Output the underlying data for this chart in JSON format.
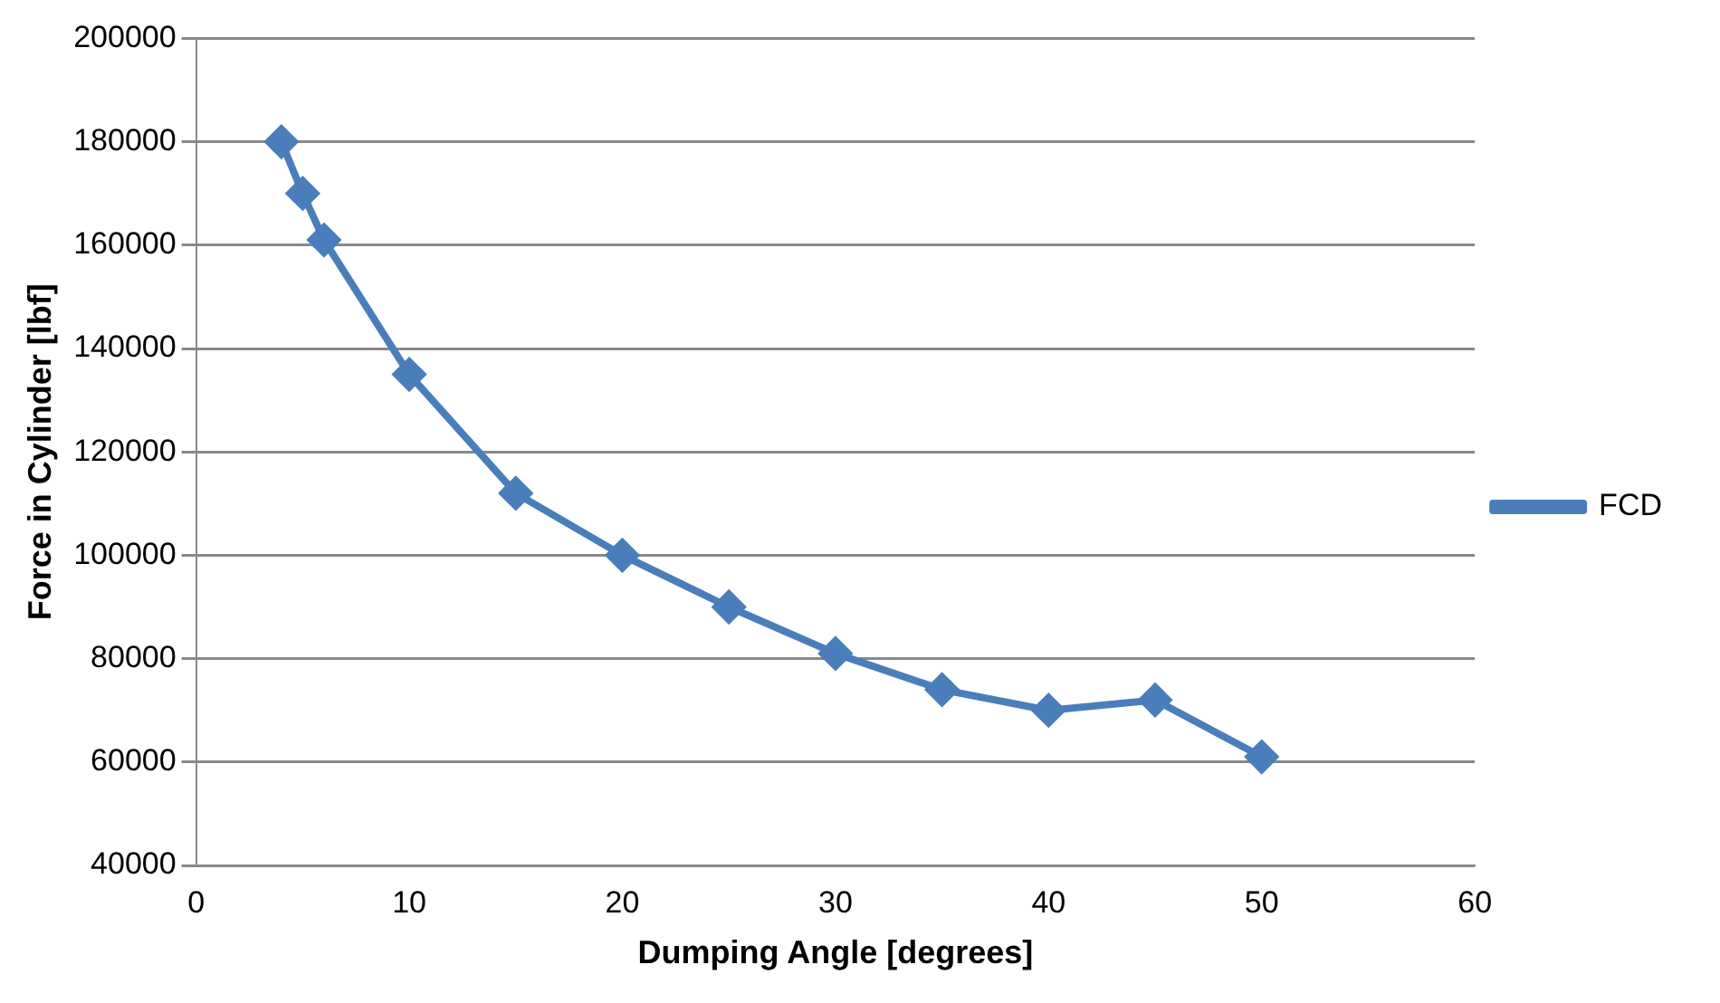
{
  "chart_data": {
    "type": "line",
    "xlabel": "Dumping Angle [degrees]",
    "ylabel": "Force in Cylinder [lbf]",
    "x": [
      4,
      5,
      6,
      10,
      15,
      20,
      25,
      30,
      35,
      40,
      45,
      50
    ],
    "series": [
      {
        "name": "FCD",
        "color": "#4a7ebb",
        "values": [
          180000,
          170000,
          161000,
          135000,
          112000,
          100000,
          90000,
          81000,
          74000,
          70000,
          72000,
          61000
        ]
      }
    ],
    "xlim": [
      0,
      60
    ],
    "xticks": [
      0,
      10,
      20,
      30,
      40,
      50,
      60
    ],
    "ylim": [
      40000,
      200000
    ],
    "yticks": [
      40000,
      60000,
      80000,
      100000,
      120000,
      140000,
      160000,
      180000,
      200000
    ],
    "grid": "y",
    "legend": "right",
    "marker": "diamond",
    "line_style": "solid"
  }
}
